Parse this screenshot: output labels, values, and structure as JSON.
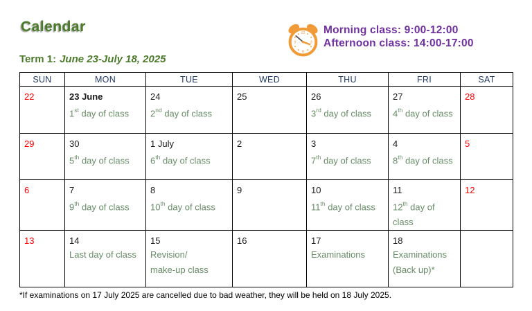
{
  "header": {
    "title": "Calendar",
    "term_label": "Term 1:",
    "term_dates": "June 23-July 18, 2025"
  },
  "legend": {
    "clock_icon": "alarm-clock-icon",
    "morning": "Morning class: 9:00-12:00",
    "afternoon": "Afternoon class: 14:00-17:00"
  },
  "calendar": {
    "day_headers": [
      "SUN",
      "MON",
      "TUE",
      "WED",
      "THU",
      "FRI",
      "SAT"
    ],
    "weeks": [
      [
        {
          "date": "22",
          "red": true
        },
        {
          "date": "23 June",
          "bold": true,
          "notes": [
            "1^st^ day of class"
          ]
        },
        {
          "date": "24",
          "notes": [
            "2^nd^ day of class"
          ]
        },
        {
          "date": "25"
        },
        {
          "date": "26",
          "notes": [
            "3^rd^ day of class"
          ]
        },
        {
          "date": "27",
          "notes": [
            "4^th^ day of class"
          ]
        },
        {
          "date": "28",
          "red": true
        }
      ],
      [
        {
          "date": "29",
          "red": true
        },
        {
          "date": "30",
          "notes": [
            "5^th^ day of class"
          ]
        },
        {
          "date": "1 July",
          "notes": [
            "6^th^ day of class"
          ]
        },
        {
          "date": "2"
        },
        {
          "date": "3",
          "notes": [
            "7^th^ day of class"
          ]
        },
        {
          "date": "4",
          "notes": [
            "8^th^ day of class"
          ]
        },
        {
          "date": "5",
          "red": true
        }
      ],
      [
        {
          "date": "6",
          "red": true
        },
        {
          "date": "7",
          "notes": [
            "9^th^ day of class"
          ]
        },
        {
          "date": "8",
          "notes": [
            "10^th^ day of class"
          ]
        },
        {
          "date": "9"
        },
        {
          "date": "10",
          "notes": [
            "11^th^ day of class"
          ]
        },
        {
          "date": "11",
          "notes": [
            "12^th^ day of class"
          ]
        },
        {
          "date": "12",
          "red": true
        }
      ],
      [
        {
          "date": "13",
          "red": true
        },
        {
          "date": "14",
          "notes": [
            "Last day of class"
          ]
        },
        {
          "date": "15",
          "notes": [
            "Revision/",
            "make-up class"
          ]
        },
        {
          "date": "16"
        },
        {
          "date": "17",
          "notes": [
            "Examinations"
          ]
        },
        {
          "date": "18",
          "notes": [
            "Examinations",
            "(Back up)*"
          ]
        },
        {}
      ]
    ]
  },
  "footnote": "*If examinations on 17 July 2025 are cancelled due to bad weather, they will be held on 18 July 2025.",
  "colors": {
    "title-green": "#4c7b2b",
    "header-navy": "#1f3864",
    "date-red": "#fe0000",
    "note-green": "#678c66",
    "legend-purple": "#7030a0",
    "clock-orange": "#f19b38"
  }
}
